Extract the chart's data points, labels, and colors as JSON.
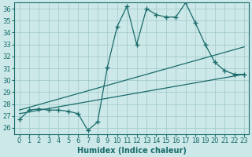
{
  "title": "",
  "xlabel": "Humidex (Indice chaleur)",
  "ylabel": "",
  "background_color": "#cce8e8",
  "grid_color": "#a0c8c8",
  "line_color": "#1a6b6b",
  "xlim": [
    -0.5,
    23.5
  ],
  "ylim": [
    25.5,
    36.5
  ],
  "yticks": [
    26,
    27,
    28,
    29,
    30,
    31,
    32,
    33,
    34,
    35,
    36
  ],
  "xticks": [
    0,
    1,
    2,
    3,
    4,
    5,
    6,
    7,
    8,
    9,
    10,
    11,
    12,
    13,
    14,
    15,
    16,
    17,
    18,
    19,
    20,
    21,
    22,
    23
  ],
  "series1_x": [
    0,
    1,
    2,
    3,
    4,
    5,
    6,
    7,
    8,
    9,
    10,
    11,
    12,
    13,
    14,
    15,
    16,
    17,
    18,
    19,
    20,
    21,
    22,
    23
  ],
  "series1_y": [
    26.7,
    27.5,
    27.6,
    27.5,
    27.5,
    27.4,
    27.2,
    25.8,
    26.5,
    31.1,
    34.5,
    36.2,
    33.0,
    36.0,
    35.5,
    35.3,
    35.3,
    36.5,
    34.8,
    33.0,
    31.5,
    30.8,
    30.5,
    30.5
  ],
  "series2_x": [
    0,
    23
  ],
  "series2_y": [
    27.2,
    30.5
  ],
  "series3_x": [
    0,
    23
  ],
  "series3_y": [
    27.5,
    32.8
  ],
  "font_size_tick": 6,
  "font_size_label": 7
}
